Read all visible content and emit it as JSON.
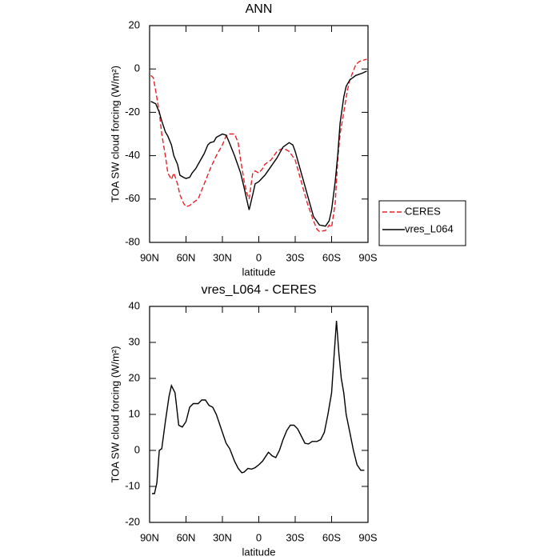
{
  "chart_data": [
    {
      "type": "line",
      "title": "ANN",
      "x_label": "latitude",
      "y_label": "TOA SW cloud forcing (W/m²)",
      "xlim": [
        90,
        -90
      ],
      "xticks": [
        {
          "value": 90,
          "label": "90N"
        },
        {
          "value": 60,
          "label": "60N"
        },
        {
          "value": 30,
          "label": "30N"
        },
        0,
        {
          "value": -30,
          "label": "30S"
        },
        {
          "value": -60,
          "label": "60S"
        },
        {
          "value": -90,
          "label": "90S"
        }
      ],
      "ylim": [
        -80,
        20
      ],
      "yticks": [
        -80,
        -60,
        -40,
        -20,
        0,
        20
      ],
      "legend": "right",
      "series": [
        {
          "name": "CERES",
          "color": "#e8202a",
          "line_style": "dashed",
          "x": [
            89,
            87,
            85,
            82,
            80,
            77,
            75,
            72,
            70,
            67,
            65,
            62,
            60,
            57,
            55,
            50,
            45,
            40,
            35,
            30,
            27,
            25,
            20,
            17,
            15,
            12,
            10,
            8,
            5,
            3,
            0,
            -3,
            -5,
            -10,
            -15,
            -20,
            -25,
            -30,
            -35,
            -40,
            -45,
            -48,
            -50,
            -55,
            -58,
            -60,
            -63,
            -65,
            -67,
            -70,
            -73,
            -75,
            -80,
            -83,
            -89
          ],
          "values": [
            -3,
            -4,
            -10,
            -20,
            -30,
            -40,
            -48,
            -51,
            -48,
            -53,
            -58,
            -62,
            -63.5,
            -63,
            -62,
            -60,
            -53,
            -46,
            -40,
            -35,
            -31,
            -30,
            -30,
            -34,
            -42,
            -52,
            -57,
            -60,
            -48,
            -47,
            -48,
            -46,
            -44,
            -42,
            -38,
            -36.5,
            -38,
            -42,
            -52,
            -62,
            -70,
            -74,
            -75,
            -74.5,
            -72,
            -73,
            -62,
            -42,
            -30,
            -20,
            -10,
            -5,
            2,
            3.5,
            4.5
          ]
        },
        {
          "name": "vres_L064",
          "color": "#000000",
          "line_style": "solid",
          "x": [
            89,
            85,
            82,
            80,
            77,
            75,
            72,
            70,
            67,
            65,
            62,
            60,
            57,
            55,
            52,
            50,
            45,
            42,
            40,
            37,
            35,
            30,
            27,
            25,
            20,
            15,
            12,
            10,
            8,
            5,
            3,
            0,
            -5,
            -10,
            -15,
            -20,
            -25,
            -28,
            -30,
            -35,
            -40,
            -45,
            -50,
            -55,
            -58,
            -60,
            -63,
            -65,
            -67,
            -70,
            -72,
            -75,
            -80,
            -85,
            -89
          ],
          "values": [
            -15,
            -16,
            -20,
            -24,
            -29,
            -31,
            -35,
            -40,
            -44,
            -49,
            -50,
            -50.5,
            -50,
            -48,
            -46,
            -44,
            -39,
            -35,
            -34,
            -33.5,
            -31.5,
            -30,
            -30.5,
            -33,
            -40,
            -48,
            -55,
            -60,
            -65,
            -58,
            -53,
            -52,
            -49,
            -45,
            -41,
            -36,
            -34,
            -35,
            -38,
            -48,
            -58,
            -68,
            -72,
            -72.5,
            -70,
            -65,
            -52,
            -40,
            -25,
            -13,
            -8,
            -5,
            -3,
            -2,
            -1
          ]
        }
      ]
    },
    {
      "type": "line",
      "title": "vres_L064 - CERES",
      "x_label": "latitude",
      "y_label": "TOA SW cloud forcing (W/m²)",
      "xlim": [
        90,
        -90
      ],
      "xticks": [
        {
          "value": 90,
          "label": "90N"
        },
        {
          "value": 60,
          "label": "60N"
        },
        {
          "value": 30,
          "label": "30N"
        },
        0,
        {
          "value": -30,
          "label": "30S"
        },
        {
          "value": -60,
          "label": "60S"
        },
        {
          "value": -90,
          "label": "90S"
        }
      ],
      "ylim": [
        -20,
        40
      ],
      "yticks": [
        -20,
        -10,
        0,
        10,
        20,
        30,
        40
      ],
      "series": [
        {
          "color": "#000000",
          "line_style": "solid",
          "x": [
            88,
            86,
            84,
            82,
            80,
            77,
            74,
            72,
            69,
            66,
            63,
            60,
            57,
            54,
            50,
            47,
            44,
            41,
            38,
            35,
            31,
            27,
            24,
            20,
            17,
            14,
            12,
            9,
            6,
            3,
            0,
            -3,
            -6,
            -8,
            -11,
            -14,
            -17,
            -20,
            -23,
            -26,
            -29,
            -32,
            -35,
            -38,
            -41,
            -44,
            -48,
            -51,
            -54,
            -57,
            -60,
            -62,
            -64,
            -66,
            -68,
            -70,
            -72,
            -75,
            -78,
            -81,
            -84,
            -87
          ],
          "values": [
            -12,
            -12,
            -9,
            0,
            0.5,
            8,
            15,
            18,
            16,
            7,
            6.5,
            8,
            12,
            13,
            13,
            14,
            14,
            12.5,
            12,
            10,
            6,
            2,
            0.5,
            -3,
            -5,
            -6.2,
            -6,
            -5,
            -5.2,
            -4.8,
            -4,
            -3,
            -1.5,
            -0.5,
            -1.5,
            -2,
            0,
            3,
            5.5,
            7,
            7,
            6,
            4,
            2,
            1.8,
            2.5,
            2.5,
            3,
            5,
            10,
            16,
            26,
            36,
            27,
            20,
            16,
            10,
            5,
            0,
            -4,
            -5.5,
            -5.5
          ]
        }
      ]
    }
  ]
}
